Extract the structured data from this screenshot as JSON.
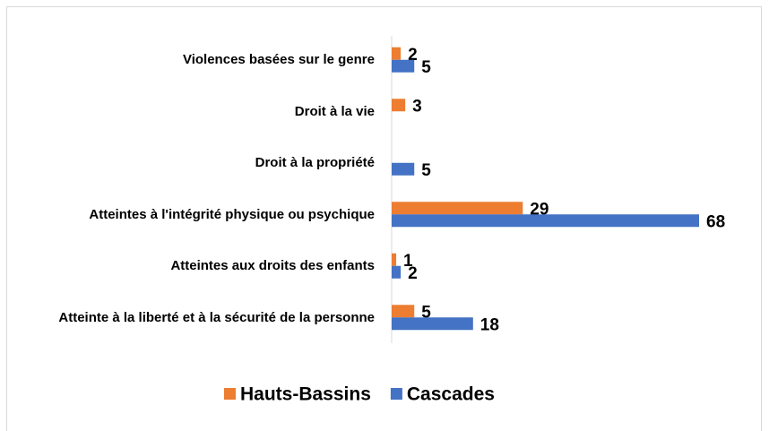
{
  "chart_data": {
    "type": "hbar",
    "categories": [
      "Violences basées sur le genre",
      "Droit à la vie",
      "Droit à la propriété",
      "Atteintes à l'intégrité physique ou psychique",
      "Atteintes aux droits des enfants",
      "Atteinte à la liberté et à la sécurité de la personne"
    ],
    "series": [
      {
        "name": "Hauts-Bassins",
        "color": "#ed7d31",
        "values": [
          2,
          3,
          null,
          29,
          1,
          5
        ]
      },
      {
        "name": "Cascades",
        "color": "#4472c4",
        "values": [
          5,
          null,
          5,
          68,
          2,
          18
        ]
      }
    ],
    "legend": "bottom"
  }
}
